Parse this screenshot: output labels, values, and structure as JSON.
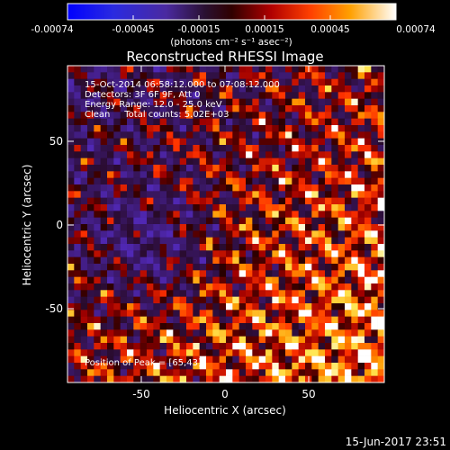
{
  "chart_data": {
    "type": "heatmap",
    "title": "Reconstructed RHESSI Image",
    "xlabel": "Heliocentric X (arcsec)",
    "ylabel": "Heliocentric Y (arcsec)",
    "xlim": [
      -93,
      94
    ],
    "ylim": [
      -93,
      94
    ],
    "xticks": [
      -50,
      0,
      50
    ],
    "yticks": [
      50,
      0,
      -50
    ],
    "colorbar": {
      "unit_label": "(photons cm⁻² s⁻¹ asec⁻²)",
      "range": [
        -0.00074,
        0.00074
      ],
      "ticks": [
        "-0.00074",
        "-0.00045",
        "-0.00015",
        "0.00015",
        "0.00045",
        "0.00074"
      ]
    },
    "info": {
      "line1": "15-Oct-2014 06:58:12.000 to 07:08:12.000",
      "line2": "Detectors: 3F 6F 9F, Att 0",
      "line3": "Energy Range: 12.0 - 25.0 keV",
      "line4": "Clean     Total counts: 5.02E+03"
    },
    "peak_label": "Position of Peak = [65,43]",
    "grid": false
  },
  "footer": {
    "timestamp": "15-Jun-2017 23:51"
  }
}
